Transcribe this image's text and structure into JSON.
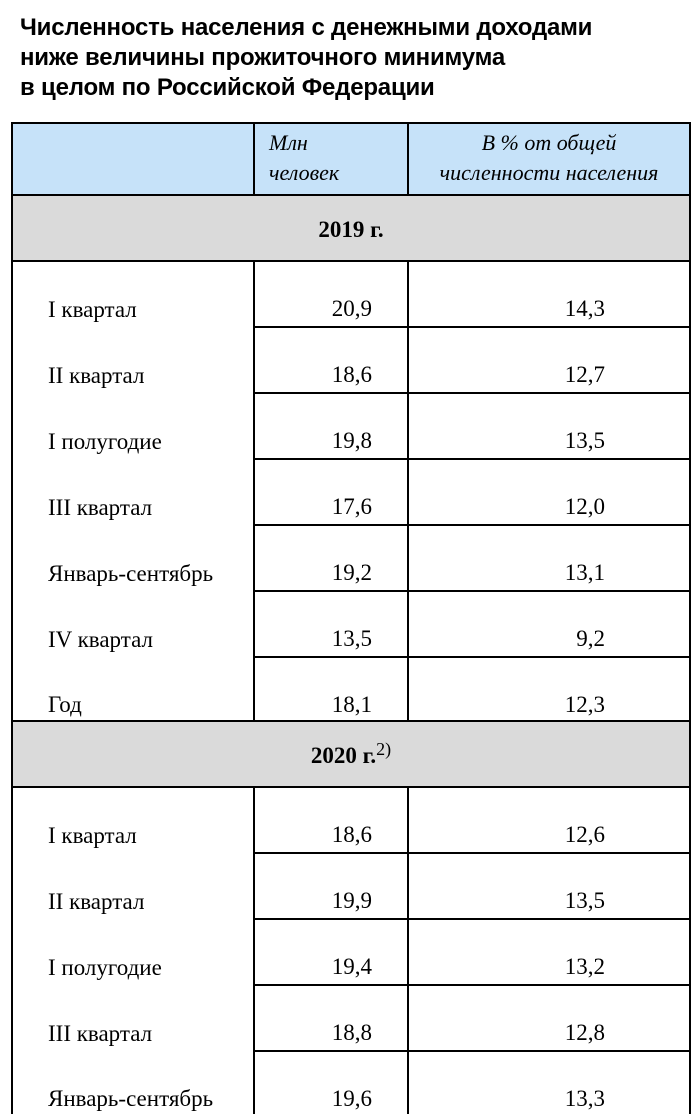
{
  "title": {
    "line1": "Численность населения с денежными доходами",
    "line2": "ниже величины прожиточного минимума",
    "line3": "в целом по Российской Федерации"
  },
  "header": {
    "col1": "",
    "col2_line1": "Млн",
    "col2_line2": "человек",
    "col3_line1": "В % от общей",
    "col3_line2": "численности населения"
  },
  "sections": [
    {
      "year": "2019 г.",
      "footnote": "",
      "rows": [
        {
          "label": "I квартал",
          "mln": "20,9",
          "pct": "14,3"
        },
        {
          "label": "II квартал",
          "mln": "18,6",
          "pct": "12,7"
        },
        {
          "label": "I полугодие",
          "mln": "19,8",
          "pct": "13,5"
        },
        {
          "label": "III квартал",
          "mln": "17,6",
          "pct": "12,0"
        },
        {
          "label": "Январь-сентябрь",
          "mln": "19,2",
          "pct": "13,1"
        },
        {
          "label": "IV квартал",
          "mln": "13,5",
          "pct": "9,2"
        },
        {
          "label": "Год",
          "mln": "18,1",
          "pct": "12,3"
        }
      ]
    },
    {
      "year": "2020 г.",
      "footnote": "2)",
      "rows": [
        {
          "label": "I квартал",
          "mln": "18,6",
          "pct": "12,6"
        },
        {
          "label": "II квартал",
          "mln": "19,9",
          "pct": "13,5"
        },
        {
          "label": "I полугодие",
          "mln": "19,4",
          "pct": "13,2"
        },
        {
          "label": "III квартал",
          "mln": "18,8",
          "pct": "12,8"
        },
        {
          "label": "Январь-сентябрь",
          "mln": "19,6",
          "pct": "13,3"
        }
      ]
    }
  ]
}
